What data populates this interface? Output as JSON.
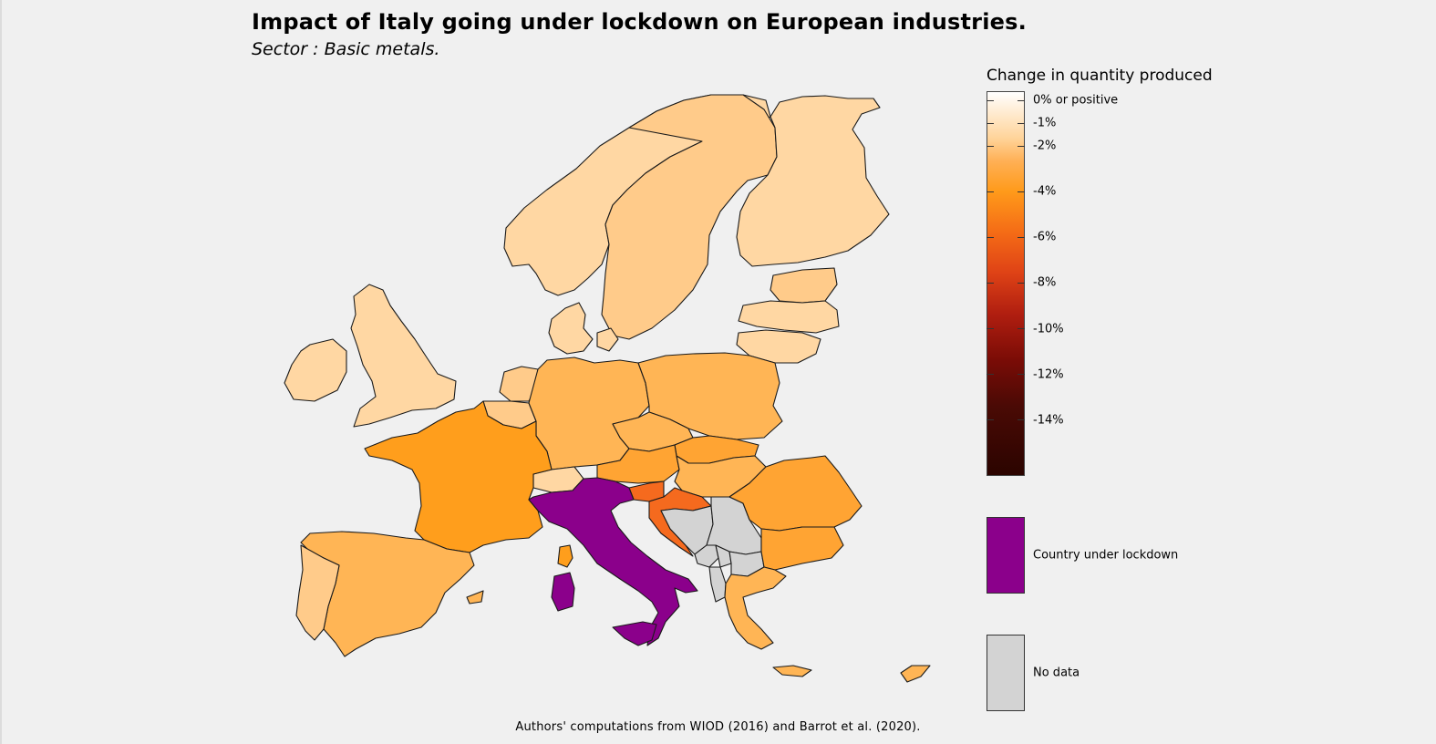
{
  "title": "Impact of Italy going under lockdown on European industries.",
  "subtitle": "Sector : Basic metals.",
  "legend": {
    "title": "Change in quantity produced",
    "scale_ticks": [
      "0% or positive",
      "-1%",
      "-2%",
      "-4%",
      "-6%",
      "-8%",
      "-10%",
      "-12%",
      "-14%"
    ],
    "categories": [
      {
        "label": "Country under lockdown",
        "color": "#8b008b"
      },
      {
        "label": "No data",
        "color": "#d3d3d3"
      }
    ]
  },
  "colors": {
    "background": "#f0f0f0",
    "light": "#ffd7a3",
    "light_orange": "#ffcb8a",
    "mid_orange": "#ffb555",
    "orange": "#ff9e1c",
    "dark_orange": "#f56a1e",
    "lockdown": "#8b008b",
    "no_data": "#d3d3d3"
  },
  "footer": "Authors' computations from WIOD (2016) and Barrot et al. (2020)."
}
